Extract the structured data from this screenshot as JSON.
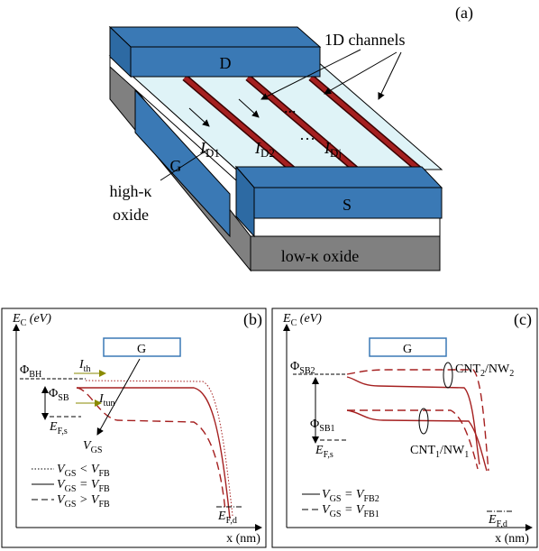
{
  "panel_a": {
    "label": "(a)",
    "channels_label": "1D channels",
    "drain": "D",
    "source": "S",
    "gate": "G",
    "high_k_oxide": [
      "high-κ",
      "oxide"
    ],
    "low_k_oxide": "low-κ oxide",
    "currents": [
      [
        "I",
        "D1"
      ],
      [
        "I",
        "D2"
      ],
      [
        "I",
        "Dj"
      ]
    ],
    "ellipsis_top": "...",
    "ellipsis_bottom": "···"
  },
  "panel_b": {
    "label": "(b)",
    "y_axis": [
      "E",
      "C",
      " (eV)"
    ],
    "x_axis": "x (nm)",
    "gate": "G",
    "phi_bh": [
      "Φ",
      "BH"
    ],
    "phi_sb": [
      "Φ",
      "SB"
    ],
    "i_th": [
      "I",
      "th"
    ],
    "i_tun": [
      "I",
      "tun"
    ],
    "e_fs": [
      "E",
      "F,s"
    ],
    "e_fd": [
      "E",
      "F,d"
    ],
    "v_gs": [
      "V",
      "GS"
    ],
    "legend": [
      [
        "V",
        "GS",
        " < V",
        "FB"
      ],
      [
        "V",
        "GS",
        " = V",
        "FB"
      ],
      [
        "V",
        "GS",
        " > V",
        "FB"
      ]
    ]
  },
  "panel_c": {
    "label": "(c)",
    "y_axis": [
      "E",
      "C",
      " (eV)"
    ],
    "x_axis": "x (nm)",
    "gate": "G",
    "phi_sb2": [
      "Φ",
      "SB2"
    ],
    "phi_sb1": [
      "Φ",
      "SB1"
    ],
    "cnt2": [
      "CNT",
      "2",
      "/NW",
      "2"
    ],
    "cnt1": [
      "CNT",
      "1",
      "/NW",
      "1"
    ],
    "e_fs": [
      "E",
      "F,s"
    ],
    "e_fd": [
      "E",
      "F,d"
    ],
    "legend": [
      [
        "V",
        "GS",
        " = V",
        "FB2"
      ],
      [
        "V",
        "GS",
        " = V",
        "FB1"
      ]
    ]
  }
}
